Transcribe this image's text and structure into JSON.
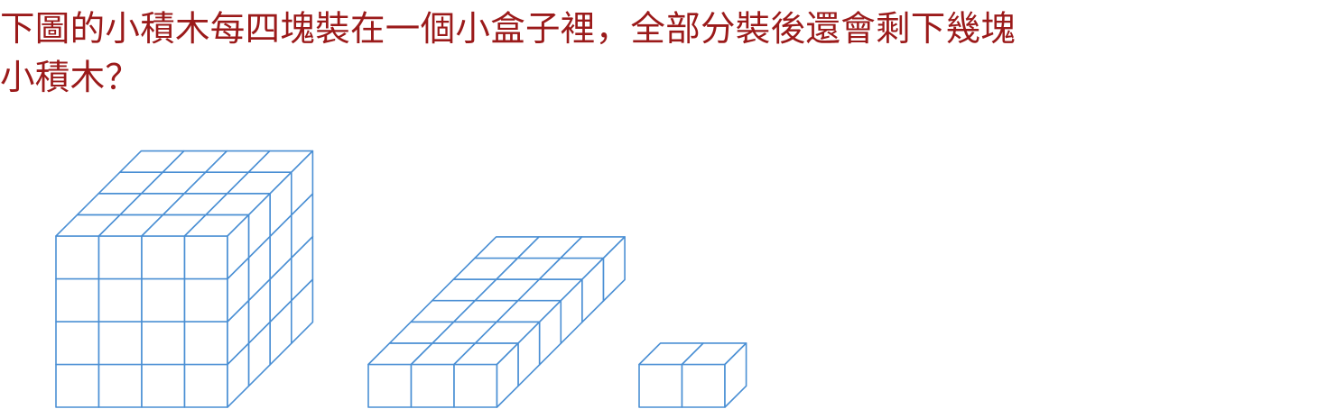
{
  "question": {
    "line1": "下圖的小積木每四塊裝在一個小盒子裡，全部分裝後還會剩下幾塊",
    "line2": "小積木？"
  },
  "colors": {
    "question_text": "#9b1a1a",
    "block_stroke": "#4a8fd4",
    "background": "#ffffff"
  },
  "figures": [
    {
      "name": "cube-stack-4x4x4",
      "cols": 4,
      "rows": 4,
      "depth": 4
    },
    {
      "name": "slab-3x1x6",
      "cols": 3,
      "rows": 1,
      "depth": 6
    },
    {
      "name": "pair-2x1x1",
      "cols": 2,
      "rows": 1,
      "depth": 1
    }
  ]
}
